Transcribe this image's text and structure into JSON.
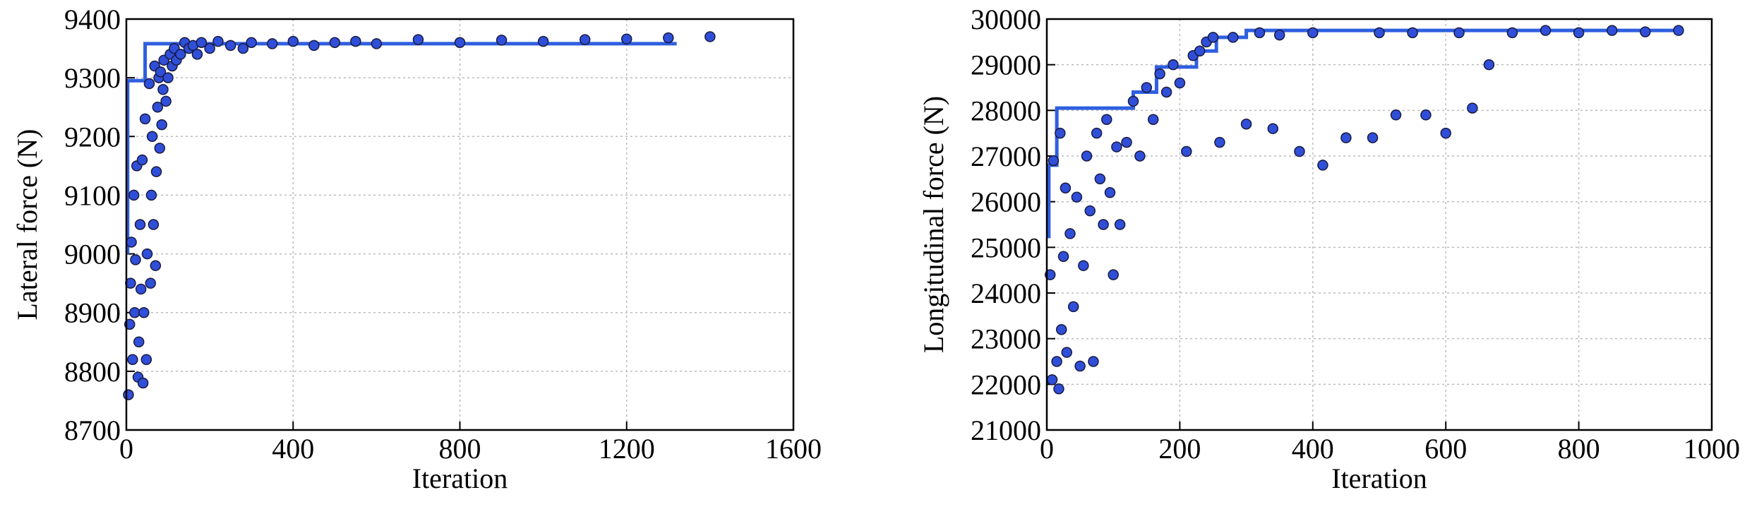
{
  "chart_data": [
    {
      "type": "scatter",
      "x_label": "Iteration",
      "y_label": "Lateral force (N)",
      "xlim": [
        0,
        1600
      ],
      "ylim": [
        8700,
        9400
      ],
      "xticks": [
        0,
        400,
        800,
        1200,
        1600
      ],
      "yticks": [
        8700,
        8800,
        8900,
        9000,
        9100,
        9200,
        9300,
        9400
      ],
      "grid": true,
      "series": [
        {
          "mode": "markers",
          "color": "#2f4fd8",
          "x": [
            5,
            8,
            10,
            12,
            15,
            18,
            20,
            22,
            25,
            28,
            30,
            33,
            35,
            38,
            40,
            42,
            45,
            48,
            50,
            55,
            58,
            60,
            62,
            65,
            68,
            70,
            72,
            75,
            78,
            80,
            82,
            85,
            88,
            90,
            95,
            100,
            105,
            110,
            115,
            120,
            130,
            140,
            150,
            160,
            170,
            180,
            200,
            220,
            250,
            280,
            300,
            350,
            400,
            450,
            500,
            550,
            600,
            700,
            800,
            900,
            1000,
            1100,
            1200,
            1300,
            1400
          ],
          "y": [
            8760,
            8880,
            8950,
            9020,
            8820,
            9100,
            8900,
            8990,
            9150,
            8790,
            8850,
            9050,
            8940,
            9160,
            8780,
            8900,
            9230,
            8820,
            9000,
            9290,
            8950,
            9100,
            9200,
            9050,
            9320,
            8980,
            9140,
            9250,
            9300,
            9180,
            9310,
            9220,
            9280,
            9330,
            9260,
            9300,
            9340,
            9320,
            9350,
            9330,
            9340,
            9360,
            9350,
            9355,
            9340,
            9360,
            9350,
            9362,
            9355,
            9350,
            9360,
            9358,
            9362,
            9355,
            9360,
            9362,
            9358,
            9365,
            9360,
            9364,
            9362,
            9365,
            9366,
            9368,
            9370
          ]
        },
        {
          "mode": "line",
          "color": "#2f5fe0",
          "x": [
            3,
            3,
            45,
            45,
            1320
          ],
          "y": [
            9000,
            9295,
            9295,
            9358,
            9358
          ]
        }
      ]
    },
    {
      "type": "scatter",
      "x_label": "Iteration",
      "y_label": "Longitudinal force (N)",
      "xlim": [
        0,
        1000
      ],
      "ylim": [
        21000,
        30000
      ],
      "xticks": [
        0,
        200,
        400,
        600,
        800,
        1000
      ],
      "yticks": [
        21000,
        22000,
        23000,
        24000,
        25000,
        26000,
        27000,
        28000,
        29000,
        30000
      ],
      "grid": true,
      "series": [
        {
          "mode": "markers",
          "color": "#2f4fd8",
          "x": [
            5,
            8,
            10,
            15,
            18,
            20,
            22,
            25,
            28,
            30,
            35,
            40,
            45,
            50,
            55,
            60,
            65,
            70,
            75,
            80,
            85,
            90,
            95,
            100,
            105,
            110,
            120,
            130,
            140,
            150,
            160,
            170,
            180,
            190,
            200,
            210,
            220,
            230,
            240,
            250,
            260,
            280,
            300,
            320,
            340,
            350,
            380,
            400,
            415,
            450,
            490,
            500,
            525,
            550,
            570,
            600,
            620,
            640,
            665,
            700,
            750,
            800,
            850,
            900,
            950
          ],
          "y": [
            24400,
            22100,
            26900,
            22500,
            21900,
            27500,
            23200,
            24800,
            26300,
            22700,
            25300,
            23700,
            26100,
            22400,
            24600,
            27000,
            25800,
            22500,
            27500,
            26500,
            25500,
            27800,
            26200,
            24400,
            27200,
            25500,
            27300,
            28200,
            27000,
            28500,
            27800,
            28800,
            28400,
            29000,
            28600,
            27100,
            29200,
            29300,
            29500,
            29600,
            27300,
            29600,
            27700,
            29700,
            27600,
            29650,
            27100,
            29700,
            26800,
            27400,
            27400,
            29700,
            27900,
            29700,
            27900,
            27500,
            29700,
            28050,
            29000,
            29700,
            29750,
            29700,
            29750,
            29720,
            29750
          ]
        },
        {
          "mode": "line",
          "color": "#2f5fe0",
          "x": [
            3,
            3,
            15,
            15,
            130,
            130,
            165,
            165,
            225,
            225,
            255,
            255,
            300,
            300,
            950
          ],
          "y": [
            25200,
            26800,
            26800,
            28050,
            28050,
            28400,
            28400,
            28950,
            28950,
            29300,
            29300,
            29600,
            29600,
            29750,
            29750
          ]
        }
      ]
    }
  ]
}
